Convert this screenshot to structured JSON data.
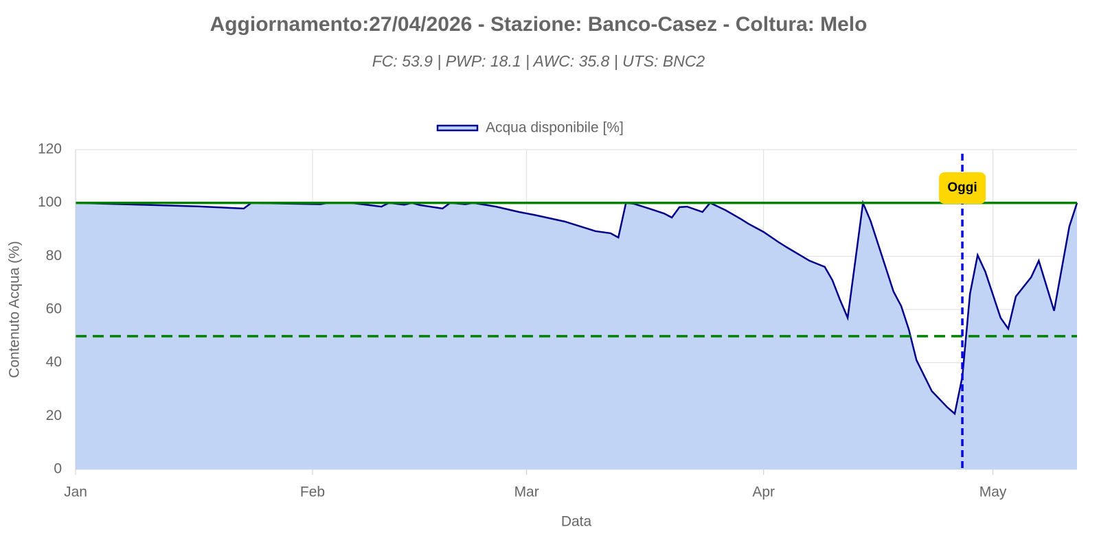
{
  "chart_data": {
    "type": "area",
    "title": "Aggiornamento:27/04/2026 - Stazione: Banco-Casez - Coltura: Melo",
    "subtitle": "FC: 53.9 | PWP: 18.1 | AWC: 35.8 | UTS: BNC2",
    "x_label": "Data",
    "y_label": "Contenuto Acqua (%)",
    "x": [
      0,
      16,
      22,
      23,
      32,
      33,
      36,
      40,
      41,
      43,
      44,
      45,
      48,
      49,
      51,
      52,
      55,
      58,
      60,
      64,
      68,
      70,
      71,
      72,
      73,
      75,
      77,
      78,
      79,
      80,
      82,
      83,
      85,
      87,
      88,
      90,
      92,
      93,
      96,
      98,
      99,
      100,
      101,
      102,
      103,
      104,
      107,
      108,
      109,
      110,
      112,
      114,
      115,
      116,
      117,
      118,
      119,
      121,
      122,
      123,
      125,
      126,
      128,
      130,
      131
    ],
    "series": [
      {
        "name": "Acqua disponibile [%]",
        "color": "#00008b",
        "fill": "#c2d4f5",
        "values": [
          100,
          98.7,
          97.9,
          100,
          99.5,
          100,
          100,
          98.6,
          100,
          99.3,
          100,
          99.2,
          97.9,
          100,
          99.5,
          100,
          98.6,
          96.6,
          95.5,
          93,
          89.4,
          88.6,
          87,
          100,
          99.7,
          97.9,
          96,
          94.5,
          98.4,
          98.6,
          96.6,
          100,
          97.3,
          94,
          92.2,
          89.1,
          85.2,
          83.4,
          78.3,
          76,
          71,
          63.6,
          56.9,
          78.3,
          100,
          93.2,
          66.7,
          61.3,
          52.5,
          41,
          29.4,
          23.4,
          20.9,
          34.8,
          65.9,
          80.4,
          74.2,
          56.9,
          52.8,
          64.9,
          72.1,
          78.3,
          59.5,
          91.2,
          100
        ]
      }
    ],
    "xlim": [
      0,
      131
    ],
    "xticks": [
      {
        "value": 0,
        "label": "Jan"
      },
      {
        "value": 31,
        "label": "Feb"
      },
      {
        "value": 59,
        "label": "Mar"
      },
      {
        "value": 90,
        "label": "Apr"
      },
      {
        "value": 120,
        "label": "May"
      }
    ],
    "ylim": [
      0,
      120
    ],
    "yticks": [
      0,
      20,
      40,
      60,
      80,
      100,
      120
    ],
    "grid": true,
    "legend": "top",
    "reference_lines": [
      {
        "value": 100,
        "color": "#008000",
        "style": "solid"
      },
      {
        "value": 50,
        "color": "#008000",
        "style": "dashed"
      }
    ],
    "annotation": {
      "x": 116,
      "text": "Oggi",
      "color": "#0000ee",
      "box_color": "#ffd700"
    }
  }
}
